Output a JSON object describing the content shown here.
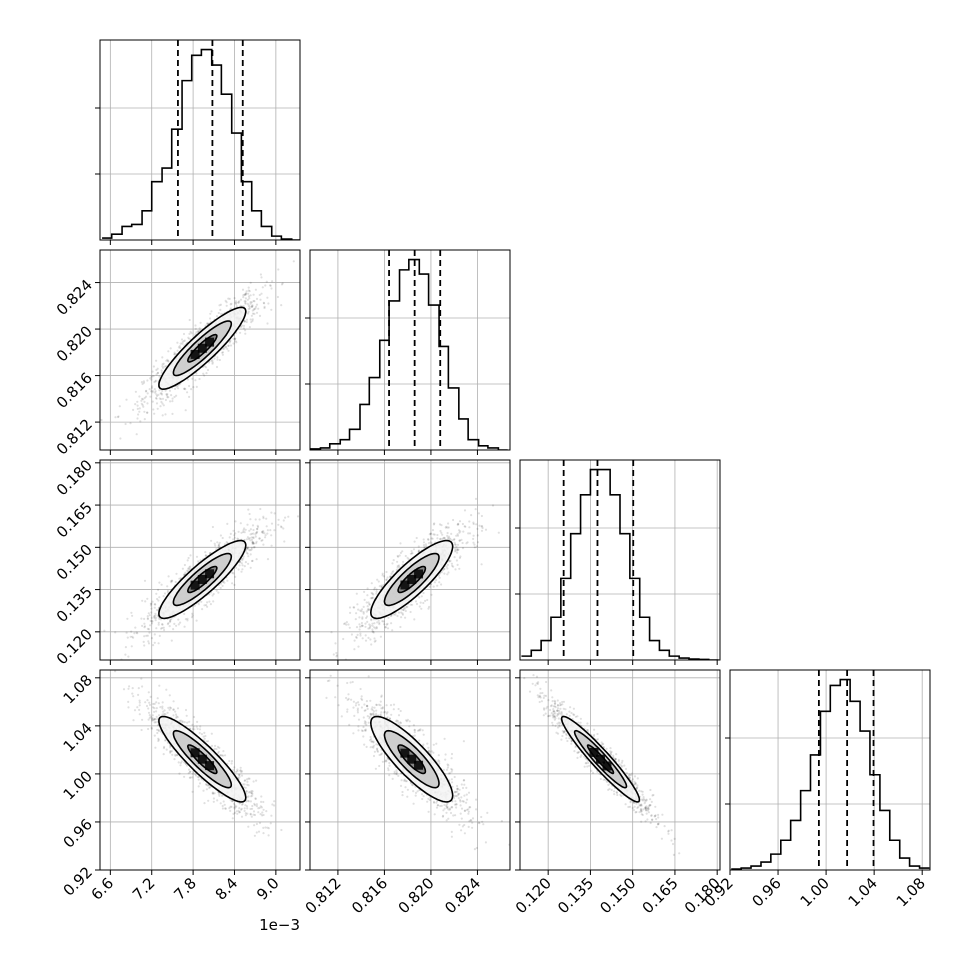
{
  "chart_data": {
    "type": "corner",
    "grid": true,
    "parameters": [
      {
        "range": [
          6.45,
          9.35
        ],
        "ticks": [
          6.6,
          7.2,
          7.8,
          8.4,
          9.0
        ],
        "tick_labels": [
          "6.6",
          "7.2",
          "7.8",
          "8.4",
          "9.0"
        ],
        "offset_label": "1e−3",
        "quantiles": [
          7.58,
          8.08,
          8.52
        ]
      },
      {
        "range": [
          0.8096,
          0.8268
        ],
        "ticks": [
          0.812,
          0.816,
          0.82,
          0.824
        ],
        "tick_labels": [
          "0.812",
          "0.816",
          "0.820",
          "0.824"
        ],
        "quantiles": [
          0.8164,
          0.8186,
          0.8208
        ]
      },
      {
        "range": [
          0.11,
          0.181
        ],
        "ticks": [
          0.12,
          0.135,
          0.15,
          0.165,
          0.18
        ],
        "tick_labels": [
          "0.120",
          "0.135",
          "0.150",
          "0.165",
          "0.180"
        ],
        "quantiles": [
          0.1255,
          0.1375,
          0.1502
        ]
      },
      {
        "range": [
          0.92,
          1.0865
        ],
        "ticks": [
          0.92,
          0.96,
          1.0,
          1.04,
          1.08
        ],
        "tick_labels": [
          "0.92",
          "0.96",
          "1.00",
          "1.04",
          "1.08"
        ],
        "quantiles": [
          0.994,
          1.0175,
          1.0395
        ]
      }
    ],
    "histograms": [
      {
        "bins": [
          6.48,
          6.62,
          6.77,
          6.91,
          7.06,
          7.2,
          7.35,
          7.49,
          7.64,
          7.78,
          7.92,
          8.07,
          8.21,
          8.36,
          8.5,
          8.65,
          8.79,
          8.94,
          9.08,
          9.23,
          9.37
        ],
        "counts": [
          1,
          3,
          7,
          8,
          15,
          30,
          37,
          57,
          82,
          95,
          98,
          90,
          75,
          55,
          30,
          15,
          7,
          2,
          0.5,
          0
        ]
      },
      {
        "bins": [
          0.8096,
          0.8105,
          0.8113,
          0.8122,
          0.813,
          0.8139,
          0.8147,
          0.8156,
          0.8164,
          0.8173,
          0.8181,
          0.819,
          0.8198,
          0.8207,
          0.8215,
          0.8224,
          0.8232,
          0.8241,
          0.8249,
          0.8258,
          0.8266
        ],
        "counts": [
          0.5,
          1,
          3,
          5,
          10,
          22,
          35,
          53,
          72,
          87,
          92,
          85,
          70,
          50,
          30,
          15,
          5,
          2,
          1,
          0
        ]
      },
      {
        "bins": [
          0.1105,
          0.114,
          0.1175,
          0.121,
          0.1245,
          0.128,
          0.1315,
          0.135,
          0.1385,
          0.142,
          0.1455,
          0.149,
          0.1525,
          0.156,
          0.1595,
          0.163,
          0.1665,
          0.17,
          0.1735,
          0.177,
          0.1805
        ],
        "counts": [
          2,
          5,
          10,
          22,
          42,
          65,
          85,
          98,
          98,
          85,
          65,
          42,
          22,
          10,
          5,
          2,
          1,
          0.5,
          0.3,
          0
        ]
      },
      {
        "bins": [
          0.921,
          0.9293,
          0.9375,
          0.9458,
          0.954,
          0.9623,
          0.9705,
          0.9788,
          0.987,
          0.9953,
          1.0035,
          1.0118,
          1.02,
          1.0283,
          1.0365,
          1.0448,
          1.053,
          1.0613,
          1.0695,
          1.0778,
          1.086
        ],
        "counts": [
          0.5,
          1,
          2,
          4,
          8,
          15,
          25,
          40,
          58,
          80,
          93,
          96,
          85,
          70,
          48,
          30,
          15,
          6,
          2,
          1
        ]
      }
    ],
    "correlations": [
      [
        1,
        0.9,
        0.88,
        -0.9
      ],
      [
        0.9,
        1,
        0.85,
        -0.85
      ],
      [
        0.88,
        0.85,
        1,
        -0.95
      ],
      [
        -0.9,
        -0.85,
        -0.95,
        1
      ]
    ],
    "contour_levels": [
      0.5,
      1.0,
      1.5
    ]
  },
  "colors": {
    "line": "#000000",
    "grid": "#b0b0b0",
    "points": "#000000"
  }
}
